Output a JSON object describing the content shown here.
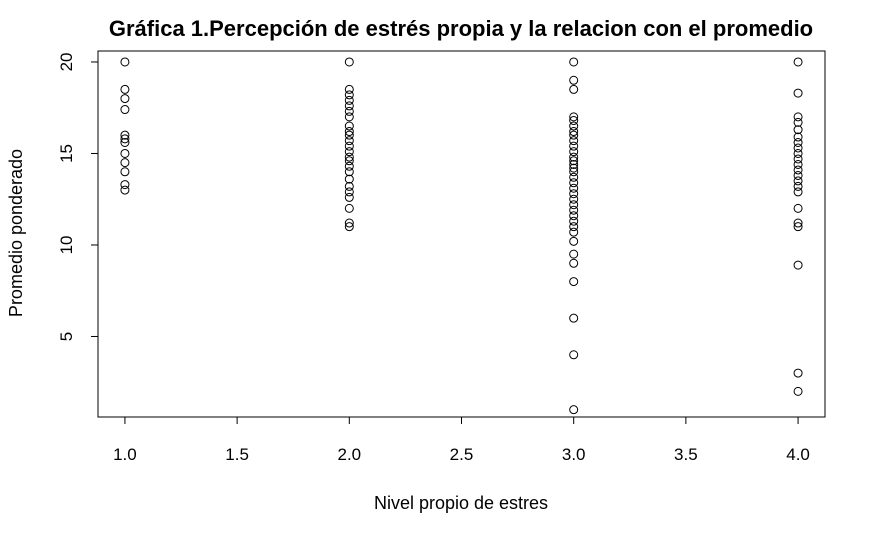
{
  "chart_data": {
    "type": "scatter",
    "title": "Gráfica 1.Percepción de estrés propia y la relacion con el promedio",
    "xlabel": "Nivel propio de estres",
    "ylabel": "Promedio ponderado",
    "xlim": [
      0.88,
      4.12
    ],
    "ylim": [
      0.6,
      20.6
    ],
    "x_ticks": [
      1.0,
      1.5,
      2.0,
      2.5,
      3.0,
      3.5,
      4.0
    ],
    "x_tick_labels": [
      "1.0",
      "1.5",
      "2.0",
      "2.5",
      "3.0",
      "3.5",
      "4.0"
    ],
    "y_ticks": [
      5,
      10,
      15,
      20
    ],
    "y_tick_labels": [
      "5",
      "10",
      "15",
      "20"
    ],
    "grid": false,
    "points": [
      {
        "x": 1,
        "y": 20.0
      },
      {
        "x": 1,
        "y": 18.5
      },
      {
        "x": 1,
        "y": 18.0
      },
      {
        "x": 1,
        "y": 17.4
      },
      {
        "x": 1,
        "y": 16.0
      },
      {
        "x": 1,
        "y": 15.8
      },
      {
        "x": 1,
        "y": 15.6
      },
      {
        "x": 1,
        "y": 15.0
      },
      {
        "x": 1,
        "y": 14.5
      },
      {
        "x": 1,
        "y": 14.0
      },
      {
        "x": 1,
        "y": 13.3
      },
      {
        "x": 1,
        "y": 13.0
      },
      {
        "x": 2,
        "y": 20.0
      },
      {
        "x": 2,
        "y": 18.5
      },
      {
        "x": 2,
        "y": 18.2
      },
      {
        "x": 2,
        "y": 17.9
      },
      {
        "x": 2,
        "y": 17.6
      },
      {
        "x": 2,
        "y": 17.3
      },
      {
        "x": 2,
        "y": 17.0
      },
      {
        "x": 2,
        "y": 16.5
      },
      {
        "x": 2,
        "y": 16.2
      },
      {
        "x": 2,
        "y": 16.0
      },
      {
        "x": 2,
        "y": 15.7
      },
      {
        "x": 2,
        "y": 15.4
      },
      {
        "x": 2,
        "y": 15.1
      },
      {
        "x": 2,
        "y": 14.8
      },
      {
        "x": 2,
        "y": 14.6
      },
      {
        "x": 2,
        "y": 14.3
      },
      {
        "x": 2,
        "y": 14.0
      },
      {
        "x": 2,
        "y": 13.6
      },
      {
        "x": 2,
        "y": 13.2
      },
      {
        "x": 2,
        "y": 12.9
      },
      {
        "x": 2,
        "y": 12.6
      },
      {
        "x": 2,
        "y": 12.0
      },
      {
        "x": 2,
        "y": 11.2
      },
      {
        "x": 2,
        "y": 11.0
      },
      {
        "x": 3,
        "y": 20.0
      },
      {
        "x": 3,
        "y": 19.0
      },
      {
        "x": 3,
        "y": 18.5
      },
      {
        "x": 3,
        "y": 17.0
      },
      {
        "x": 3,
        "y": 16.8
      },
      {
        "x": 3,
        "y": 16.5
      },
      {
        "x": 3,
        "y": 16.2
      },
      {
        "x": 3,
        "y": 16.0
      },
      {
        "x": 3,
        "y": 15.7
      },
      {
        "x": 3,
        "y": 15.4
      },
      {
        "x": 3,
        "y": 15.1
      },
      {
        "x": 3,
        "y": 14.8
      },
      {
        "x": 3,
        "y": 14.6
      },
      {
        "x": 3,
        "y": 14.4
      },
      {
        "x": 3,
        "y": 14.2
      },
      {
        "x": 3,
        "y": 14.0
      },
      {
        "x": 3,
        "y": 13.7
      },
      {
        "x": 3,
        "y": 13.4
      },
      {
        "x": 3,
        "y": 13.1
      },
      {
        "x": 3,
        "y": 12.8
      },
      {
        "x": 3,
        "y": 12.5
      },
      {
        "x": 3,
        "y": 12.2
      },
      {
        "x": 3,
        "y": 11.9
      },
      {
        "x": 3,
        "y": 11.6
      },
      {
        "x": 3,
        "y": 11.3
      },
      {
        "x": 3,
        "y": 11.0
      },
      {
        "x": 3,
        "y": 10.7
      },
      {
        "x": 3,
        "y": 10.2
      },
      {
        "x": 3,
        "y": 9.5
      },
      {
        "x": 3,
        "y": 9.0
      },
      {
        "x": 3,
        "y": 8.0
      },
      {
        "x": 3,
        "y": 6.0
      },
      {
        "x": 3,
        "y": 4.0
      },
      {
        "x": 3,
        "y": 1.0
      },
      {
        "x": 4,
        "y": 20.0
      },
      {
        "x": 4,
        "y": 18.3
      },
      {
        "x": 4,
        "y": 17.0
      },
      {
        "x": 4,
        "y": 16.7
      },
      {
        "x": 4,
        "y": 16.3
      },
      {
        "x": 4,
        "y": 15.9
      },
      {
        "x": 4,
        "y": 15.6
      },
      {
        "x": 4,
        "y": 15.3
      },
      {
        "x": 4,
        "y": 15.0
      },
      {
        "x": 4,
        "y": 14.7
      },
      {
        "x": 4,
        "y": 14.4
      },
      {
        "x": 4,
        "y": 14.1
      },
      {
        "x": 4,
        "y": 13.8
      },
      {
        "x": 4,
        "y": 13.5
      },
      {
        "x": 4,
        "y": 13.2
      },
      {
        "x": 4,
        "y": 12.9
      },
      {
        "x": 4,
        "y": 12.0
      },
      {
        "x": 4,
        "y": 11.2
      },
      {
        "x": 4,
        "y": 11.0
      },
      {
        "x": 4,
        "y": 8.9
      },
      {
        "x": 4,
        "y": 3.0
      },
      {
        "x": 4,
        "y": 2.0
      }
    ]
  }
}
